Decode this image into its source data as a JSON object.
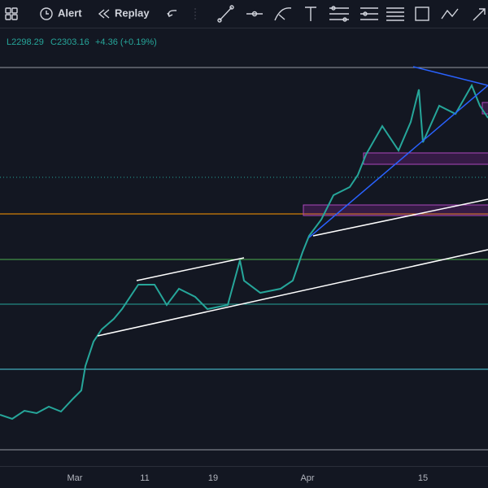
{
  "toolbar": {
    "alert": "Alert",
    "replay": "Replay"
  },
  "legend": {
    "low": "L2298.29",
    "close": "C2303.16",
    "change": "+4.36 (+0.19%)"
  },
  "x_axis": {
    "labels": [
      "Mar",
      "11",
      "19",
      "Apr",
      "15"
    ]
  }
}
